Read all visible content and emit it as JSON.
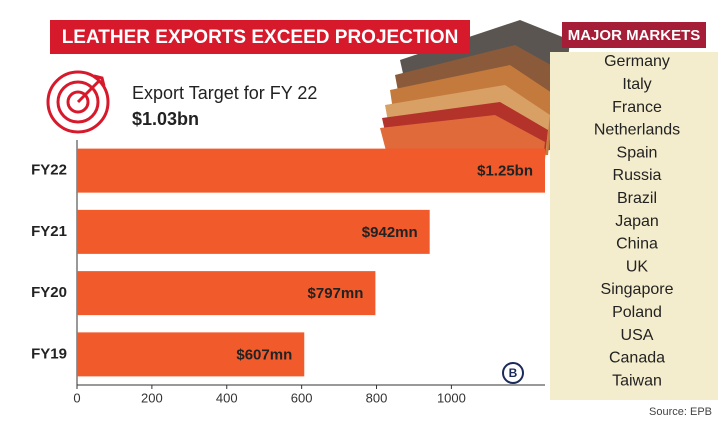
{
  "chart_data": {
    "type": "bar",
    "orientation": "horizontal",
    "title": "LEATHER EXPORTS EXCEED PROJECTION",
    "annotation": "Export Target for FY 22",
    "annotation_value": "$1.03bn",
    "categories": [
      "FY22",
      "FY21",
      "FY20",
      "FY19"
    ],
    "values": [
      1250,
      942,
      797,
      607
    ],
    "value_labels": [
      "$1.25bn",
      "$942mn",
      "$797mn",
      "$607mn"
    ],
    "color": "#f15a2b",
    "xlim": [
      0,
      1250
    ],
    "xticks": [
      0,
      200,
      400,
      600,
      800,
      1000
    ]
  },
  "sidebar": {
    "title": "MAJOR MARKETS",
    "items": [
      "Germany",
      "Italy",
      "France",
      "Netherlands",
      "Spain",
      "Russia",
      "Brazil",
      "Japan",
      "China",
      "UK",
      "Singapore",
      "Poland",
      "USA",
      "Canada",
      "Taiwan"
    ]
  },
  "source": "Source: EPB"
}
